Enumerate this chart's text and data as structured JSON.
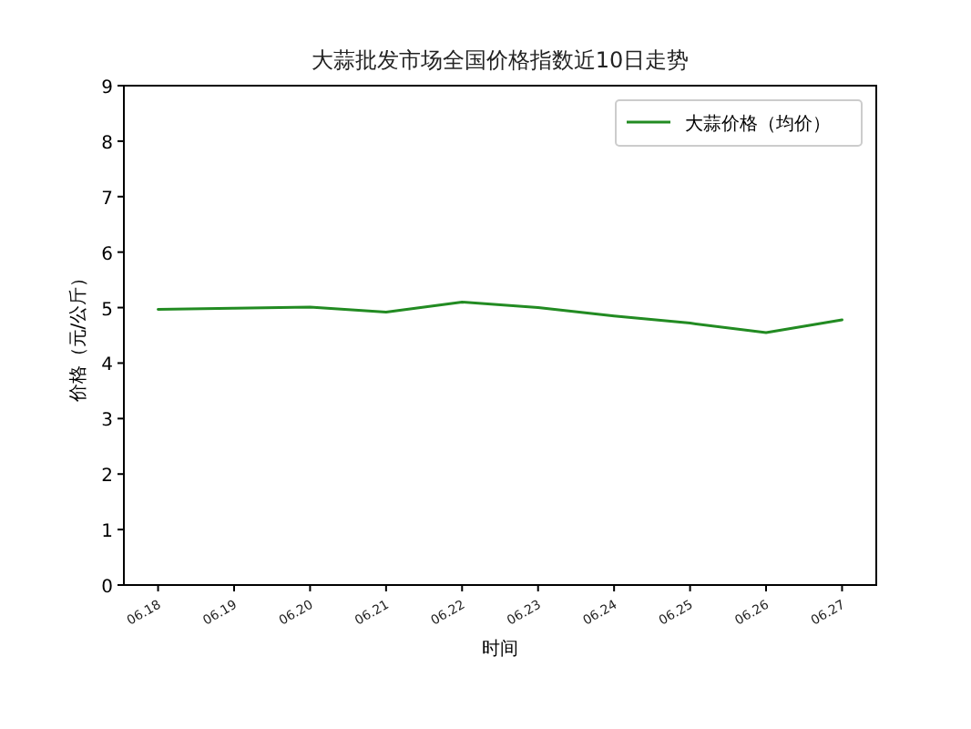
{
  "chart_data": {
    "type": "line",
    "title": "大蒜批发市场全国价格指数近10日走势",
    "xlabel": "时间",
    "ylabel": "价格（元/公斤）",
    "categories": [
      "06.18",
      "06.19",
      "06.20",
      "06.21",
      "06.22",
      "06.23",
      "06.24",
      "06.25",
      "06.26",
      "06.27"
    ],
    "series": [
      {
        "name": "大蒜价格（均价）",
        "color": "#228b22",
        "values": [
          4.97,
          4.99,
          5.01,
          4.92,
          5.1,
          5.0,
          4.85,
          4.72,
          4.55,
          4.78
        ]
      }
    ],
    "ylim": [
      0,
      9
    ],
    "yticks": [
      0,
      1,
      2,
      3,
      4,
      5,
      6,
      7,
      8,
      9
    ],
    "legend": "top right",
    "grid": false,
    "marker": "none",
    "line_style": "solid"
  }
}
